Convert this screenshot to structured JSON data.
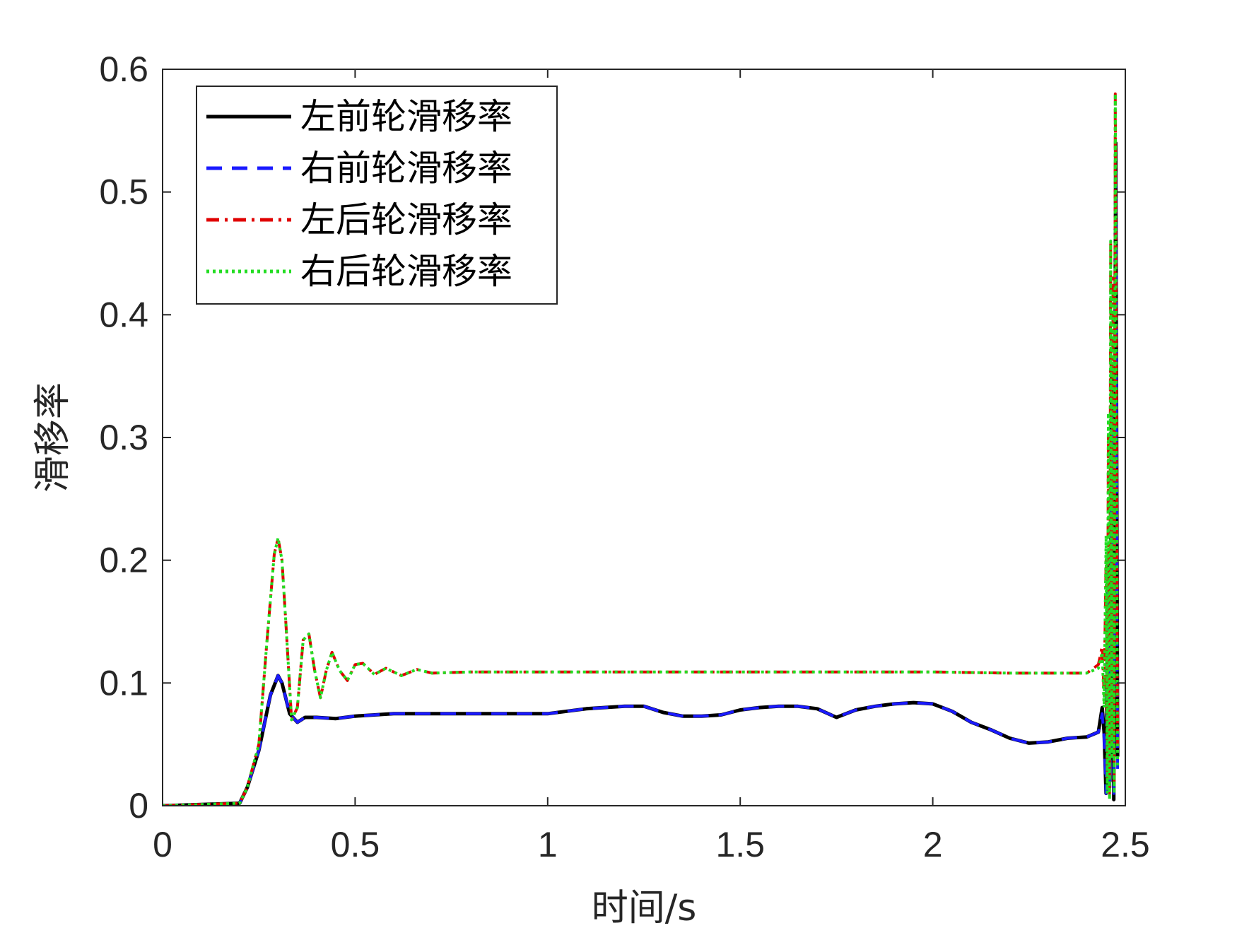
{
  "chart_data": {
    "type": "line",
    "xlabel": "时间/s",
    "ylabel": "滑移率",
    "xlim": [
      0,
      2.5
    ],
    "ylim": [
      0,
      0.6
    ],
    "xticks": [
      "0",
      "0.5",
      "1",
      "1.5",
      "2",
      "2.5"
    ],
    "yticks": [
      "0",
      "0.1",
      "0.2",
      "0.3",
      "0.4",
      "0.5",
      "0.6"
    ],
    "grid": false,
    "legend_position": "top-left",
    "series": [
      {
        "name": "左前轮滑移率",
        "color": "#000000",
        "style": "solid",
        "x": [
          0,
          0.2,
          0.22,
          0.25,
          0.28,
          0.3,
          0.31,
          0.33,
          0.35,
          0.37,
          0.4,
          0.45,
          0.5,
          0.6,
          0.7,
          0.8,
          0.9,
          1.0,
          1.05,
          1.1,
          1.2,
          1.25,
          1.3,
          1.35,
          1.4,
          1.45,
          1.5,
          1.55,
          1.6,
          1.65,
          1.7,
          1.75,
          1.8,
          1.85,
          1.9,
          1.95,
          2.0,
          2.05,
          2.1,
          2.15,
          2.2,
          2.25,
          2.3,
          2.35,
          2.4,
          2.43,
          2.44,
          2.445,
          2.45,
          2.455,
          2.46,
          2.465,
          2.47,
          2.475,
          2.48
        ],
        "y": [
          0,
          0.002,
          0.015,
          0.045,
          0.09,
          0.106,
          0.1,
          0.075,
          0.068,
          0.072,
          0.072,
          0.071,
          0.073,
          0.075,
          0.075,
          0.075,
          0.075,
          0.075,
          0.077,
          0.079,
          0.081,
          0.081,
          0.076,
          0.073,
          0.073,
          0.074,
          0.078,
          0.08,
          0.081,
          0.081,
          0.079,
          0.072,
          0.078,
          0.081,
          0.083,
          0.084,
          0.083,
          0.077,
          0.068,
          0.062,
          0.055,
          0.051,
          0.052,
          0.055,
          0.056,
          0.06,
          0.08,
          0.06,
          0.01,
          0.2,
          0.02,
          0.35,
          0.005,
          0.54,
          0.04
        ]
      },
      {
        "name": "右前轮滑移率",
        "color": "#1a1aff",
        "style": "dashed",
        "x": [
          0,
          0.2,
          0.22,
          0.25,
          0.28,
          0.3,
          0.31,
          0.33,
          0.35,
          0.37,
          0.4,
          0.45,
          0.5,
          0.6,
          0.7,
          0.8,
          0.9,
          1.0,
          1.05,
          1.1,
          1.2,
          1.25,
          1.3,
          1.35,
          1.4,
          1.45,
          1.5,
          1.55,
          1.6,
          1.65,
          1.7,
          1.75,
          1.8,
          1.85,
          1.9,
          1.95,
          2.0,
          2.05,
          2.1,
          2.15,
          2.2,
          2.25,
          2.3,
          2.35,
          2.4,
          2.43,
          2.44,
          2.445,
          2.45,
          2.455,
          2.46,
          2.465,
          2.47,
          2.475,
          2.48
        ],
        "y": [
          0,
          0.002,
          0.015,
          0.045,
          0.09,
          0.106,
          0.1,
          0.075,
          0.068,
          0.072,
          0.072,
          0.071,
          0.073,
          0.075,
          0.075,
          0.075,
          0.075,
          0.075,
          0.077,
          0.079,
          0.081,
          0.081,
          0.076,
          0.073,
          0.073,
          0.074,
          0.078,
          0.08,
          0.081,
          0.081,
          0.079,
          0.072,
          0.078,
          0.081,
          0.083,
          0.084,
          0.083,
          0.077,
          0.068,
          0.062,
          0.055,
          0.051,
          0.052,
          0.055,
          0.056,
          0.06,
          0.075,
          0.055,
          0.01,
          0.18,
          0.015,
          0.32,
          0.01,
          0.52,
          0.03
        ]
      },
      {
        "name": "左后轮滑移率",
        "color": "#e00000",
        "style": "dashdot",
        "x": [
          0,
          0.2,
          0.22,
          0.25,
          0.27,
          0.29,
          0.3,
          0.31,
          0.32,
          0.335,
          0.35,
          0.365,
          0.38,
          0.395,
          0.41,
          0.425,
          0.44,
          0.46,
          0.48,
          0.5,
          0.52,
          0.55,
          0.58,
          0.62,
          0.66,
          0.7,
          0.8,
          1.0,
          1.5,
          2.0,
          2.2,
          2.4,
          2.43,
          2.44,
          2.445,
          2.45,
          2.453,
          2.456,
          2.459,
          2.462,
          2.465,
          2.468,
          2.471,
          2.474,
          2.477,
          2.48
        ],
        "y": [
          0,
          0.002,
          0.015,
          0.05,
          0.13,
          0.205,
          0.218,
          0.2,
          0.15,
          0.07,
          0.08,
          0.135,
          0.14,
          0.11,
          0.088,
          0.11,
          0.125,
          0.11,
          0.102,
          0.115,
          0.116,
          0.107,
          0.112,
          0.106,
          0.111,
          0.108,
          0.109,
          0.109,
          0.109,
          0.109,
          0.108,
          0.108,
          0.115,
          0.13,
          0.09,
          0.2,
          0.02,
          0.3,
          0.01,
          0.46,
          0.05,
          0.43,
          0.02,
          0.58,
          0.3,
          0.05
        ]
      },
      {
        "name": "右后轮滑移率",
        "color": "#22dd22",
        "style": "dotted",
        "x": [
          0,
          0.2,
          0.22,
          0.25,
          0.27,
          0.29,
          0.3,
          0.31,
          0.32,
          0.335,
          0.35,
          0.365,
          0.38,
          0.395,
          0.41,
          0.425,
          0.44,
          0.46,
          0.48,
          0.5,
          0.52,
          0.55,
          0.58,
          0.62,
          0.66,
          0.7,
          0.8,
          1.0,
          1.5,
          2.0,
          2.2,
          2.4,
          2.43,
          2.44,
          2.445,
          2.45,
          2.453,
          2.456,
          2.459,
          2.462,
          2.465,
          2.468,
          2.471,
          2.474,
          2.477,
          2.48
        ],
        "y": [
          0,
          0.002,
          0.015,
          0.05,
          0.13,
          0.205,
          0.218,
          0.2,
          0.15,
          0.07,
          0.08,
          0.135,
          0.14,
          0.11,
          0.088,
          0.11,
          0.125,
          0.11,
          0.102,
          0.115,
          0.116,
          0.107,
          0.112,
          0.106,
          0.111,
          0.108,
          0.109,
          0.109,
          0.109,
          0.109,
          0.108,
          0.108,
          0.112,
          0.125,
          0.08,
          0.22,
          0.01,
          0.32,
          0.005,
          0.46,
          0.04,
          0.42,
          0.01,
          0.58,
          0.28,
          0.03
        ]
      }
    ]
  }
}
